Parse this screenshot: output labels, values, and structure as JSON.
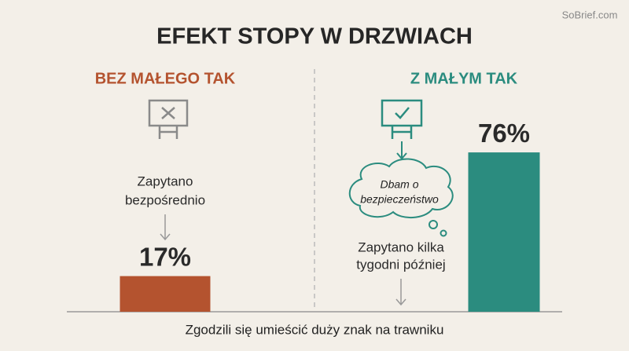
{
  "chart_data": {
    "type": "bar",
    "title": "EFEKT STOPY W DRZWIACH",
    "watermark": "SoBrief.com",
    "categories": [
      "BEZ MAŁEGO TAK",
      "Z MAŁYM TAK"
    ],
    "values": [
      17,
      76
    ],
    "value_labels": [
      "17%",
      "76%"
    ],
    "colors": [
      "#b4532f",
      "#2b8c7f"
    ],
    "x_label": "Zgodzili się umieścić duży znak na trawniku",
    "annotations": {
      "left": [
        "Zapytano",
        "bezpośrednio"
      ],
      "thought": [
        "Dbam o",
        "bezpieczeństwo"
      ],
      "right": [
        "Zapytano kilka",
        "tygodni później"
      ]
    }
  }
}
